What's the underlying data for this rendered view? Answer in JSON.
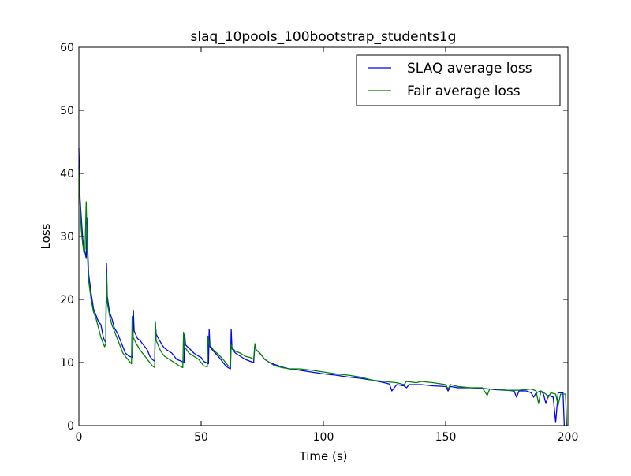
{
  "chart_data": {
    "type": "line",
    "title": "slaq_10pools_100bootstrap_students1g",
    "xlabel": "Time (s)",
    "ylabel": "Loss",
    "xlim": [
      0,
      200
    ],
    "ylim": [
      0,
      60
    ],
    "xticks": [
      0,
      50,
      100,
      150,
      200
    ],
    "yticks": [
      0,
      10,
      20,
      30,
      40,
      50,
      60
    ],
    "grid": false,
    "legend_position": "top-right",
    "series": [
      {
        "name": "SLAQ average loss",
        "color": "#0000ff",
        "points": [
          [
            0,
            44
          ],
          [
            0.5,
            36
          ],
          [
            1,
            33
          ],
          [
            1.5,
            30
          ],
          [
            2,
            28
          ],
          [
            2.5,
            27.5
          ],
          [
            3,
            26.5
          ],
          [
            3.3,
            33
          ],
          [
            3.6,
            28
          ],
          [
            4,
            24
          ],
          [
            5,
            21
          ],
          [
            6,
            18.5
          ],
          [
            7,
            17.5
          ],
          [
            8,
            16.5
          ],
          [
            9,
            16
          ],
          [
            10,
            14
          ],
          [
            10.5,
            13.5
          ],
          [
            11,
            13.2
          ],
          [
            11.3,
            25.7
          ],
          [
            11.6,
            20.5
          ],
          [
            12.5,
            18
          ],
          [
            13.5,
            17
          ],
          [
            14.5,
            15.5
          ],
          [
            16,
            14.5
          ],
          [
            17,
            13.5
          ],
          [
            18,
            12.5
          ],
          [
            19,
            11.5
          ],
          [
            20.5,
            11
          ],
          [
            22,
            10.8
          ],
          [
            22.3,
            18.3
          ],
          [
            22.6,
            15
          ],
          [
            24,
            13.8
          ],
          [
            25,
            13.5
          ],
          [
            26,
            13
          ],
          [
            27,
            12.5
          ],
          [
            28,
            12
          ],
          [
            29,
            11
          ],
          [
            30,
            10.5
          ],
          [
            31,
            10.2
          ],
          [
            31.3,
            16.2
          ],
          [
            31.6,
            14.5
          ],
          [
            33,
            13.5
          ],
          [
            34,
            12.8
          ],
          [
            35,
            12.3
          ],
          [
            36,
            12
          ],
          [
            38,
            11.5
          ],
          [
            39,
            11
          ],
          [
            40,
            10.5
          ],
          [
            42,
            10.2
          ],
          [
            43,
            10
          ],
          [
            43.3,
            14.5
          ],
          [
            43.6,
            12.8
          ],
          [
            45,
            12.3
          ],
          [
            47,
            11.5
          ],
          [
            49,
            11
          ],
          [
            50,
            10.8
          ],
          [
            51,
            10.2
          ],
          [
            52,
            10
          ],
          [
            53,
            9.8
          ],
          [
            53.3,
            15.3
          ],
          [
            53.6,
            12.5
          ],
          [
            55,
            11.8
          ],
          [
            57,
            11
          ],
          [
            59,
            10
          ],
          [
            60,
            9.5
          ],
          [
            61,
            9.2
          ],
          [
            62,
            9
          ],
          [
            62.3,
            15.3
          ],
          [
            62.6,
            12.2
          ],
          [
            64,
            11.5
          ],
          [
            66,
            11
          ],
          [
            68,
            10.5
          ],
          [
            70,
            10.2
          ],
          [
            71.5,
            10
          ],
          [
            72,
            12.8
          ],
          [
            72.5,
            12
          ],
          [
            74,
            11.5
          ],
          [
            75,
            11
          ],
          [
            76,
            10.5
          ],
          [
            78,
            10
          ],
          [
            80,
            9.7
          ],
          [
            83,
            9.3
          ],
          [
            86,
            9
          ],
          [
            90,
            8.8
          ],
          [
            95,
            8.5
          ],
          [
            100,
            8.2
          ],
          [
            105,
            8
          ],
          [
            110,
            7.7
          ],
          [
            115,
            7.5
          ],
          [
            120,
            7.2
          ],
          [
            125,
            6.8
          ],
          [
            127,
            6.6
          ],
          [
            128,
            5.5
          ],
          [
            129,
            6
          ],
          [
            130,
            6.5
          ],
          [
            133,
            6.3
          ],
          [
            134,
            6
          ],
          [
            135,
            6.5
          ],
          [
            140,
            6.5
          ],
          [
            145,
            6.3
          ],
          [
            150,
            6.2
          ],
          [
            151,
            5.5
          ],
          [
            152,
            6.2
          ],
          [
            155,
            6
          ],
          [
            158,
            6
          ],
          [
            160,
            6
          ],
          [
            165,
            5.9
          ],
          [
            168,
            5.8
          ],
          [
            170,
            5.7
          ],
          [
            175,
            5.6
          ],
          [
            178,
            5.5
          ],
          [
            179,
            4.5
          ],
          [
            180,
            5.5
          ],
          [
            183,
            5.5
          ],
          [
            185,
            5.2
          ],
          [
            186,
            4.5
          ],
          [
            187,
            5.2
          ],
          [
            189,
            5.5
          ],
          [
            190,
            5
          ],
          [
            191,
            3.5
          ],
          [
            192,
            4.8
          ],
          [
            194,
            4.5
          ],
          [
            195,
            0.5
          ],
          [
            196,
            5.2
          ],
          [
            198,
            5.2
          ],
          [
            198.5,
            0
          ]
        ]
      },
      {
        "name": "Fair average loss",
        "color": "#008000",
        "points": [
          [
            0,
            41
          ],
          [
            0.5,
            35
          ],
          [
            1,
            31
          ],
          [
            1.5,
            29
          ],
          [
            2,
            27.5
          ],
          [
            2.5,
            28
          ],
          [
            3,
            35.5
          ],
          [
            3.4,
            28
          ],
          [
            4,
            23
          ],
          [
            5,
            20
          ],
          [
            6,
            18
          ],
          [
            7,
            17
          ],
          [
            8,
            15.5
          ],
          [
            9,
            14
          ],
          [
            10,
            13
          ],
          [
            10.5,
            12.5
          ],
          [
            11,
            13
          ],
          [
            11.3,
            24.2
          ],
          [
            11.6,
            19.5
          ],
          [
            12.5,
            17.5
          ],
          [
            13.5,
            16
          ],
          [
            14.5,
            15
          ],
          [
            16,
            13.5
          ],
          [
            17,
            12.5
          ],
          [
            18,
            11.5
          ],
          [
            19,
            11
          ],
          [
            20,
            10.5
          ],
          [
            21.5,
            9.8
          ],
          [
            21.8,
            17.3
          ],
          [
            22.2,
            14
          ],
          [
            23.5,
            13
          ],
          [
            25,
            12
          ],
          [
            26,
            11.5
          ],
          [
            27,
            11
          ],
          [
            28,
            10.5
          ],
          [
            29,
            10
          ],
          [
            30,
            9.5
          ],
          [
            31,
            9.2
          ],
          [
            31.3,
            16.5
          ],
          [
            31.6,
            13.5
          ],
          [
            33,
            12.2
          ],
          [
            34,
            11.5
          ],
          [
            35,
            11
          ],
          [
            37,
            10.5
          ],
          [
            39,
            10
          ],
          [
            41,
            9.5
          ],
          [
            42.5,
            9.2
          ],
          [
            42.8,
            14.8
          ],
          [
            43.2,
            12.5
          ],
          [
            45,
            11.5
          ],
          [
            47,
            11
          ],
          [
            49,
            10.5
          ],
          [
            50,
            10
          ],
          [
            51,
            9.5
          ],
          [
            52.5,
            9.3
          ],
          [
            52.8,
            14.2
          ],
          [
            53.2,
            13
          ],
          [
            55,
            12
          ],
          [
            57,
            11.3
          ],
          [
            59,
            10.5
          ],
          [
            60,
            10
          ],
          [
            61,
            9.5
          ],
          [
            62,
            9.3
          ],
          [
            62.3,
            12.8
          ],
          [
            62.7,
            12.3
          ],
          [
            64,
            11.8
          ],
          [
            66,
            11.5
          ],
          [
            68,
            11
          ],
          [
            70,
            10.8
          ],
          [
            71.5,
            10.5
          ],
          [
            72,
            13
          ],
          [
            72.5,
            12
          ],
          [
            74,
            11.5
          ],
          [
            75,
            11
          ],
          [
            76,
            10.5
          ],
          [
            78,
            10
          ],
          [
            80,
            9.5
          ],
          [
            83,
            9.2
          ],
          [
            86,
            9
          ],
          [
            90,
            9
          ],
          [
            95,
            8.8
          ],
          [
            100,
            8.5
          ],
          [
            105,
            8.2
          ],
          [
            110,
            8
          ],
          [
            115,
            7.7
          ],
          [
            120,
            7.2
          ],
          [
            125,
            7
          ],
          [
            130,
            6.8
          ],
          [
            133,
            6.5
          ],
          [
            134,
            7
          ],
          [
            138,
            6.8
          ],
          [
            140,
            7
          ],
          [
            145,
            6.8
          ],
          [
            150,
            6.5
          ],
          [
            151,
            5.8
          ],
          [
            152,
            6.5
          ],
          [
            155,
            6.2
          ],
          [
            160,
            6
          ],
          [
            165,
            6
          ],
          [
            167,
            4.8
          ],
          [
            168,
            5.8
          ],
          [
            170,
            5.8
          ],
          [
            175,
            5.6
          ],
          [
            180,
            5.6
          ],
          [
            185,
            5.8
          ],
          [
            187,
            5.5
          ],
          [
            188,
            3.5
          ],
          [
            189,
            5.5
          ],
          [
            191,
            5
          ],
          [
            192,
            4.5
          ],
          [
            193,
            5.2
          ],
          [
            195,
            5
          ],
          [
            196,
            3.2
          ],
          [
            197,
            5
          ],
          [
            198,
            5
          ],
          [
            199,
            5
          ],
          [
            199.5,
            0
          ]
        ]
      }
    ]
  }
}
